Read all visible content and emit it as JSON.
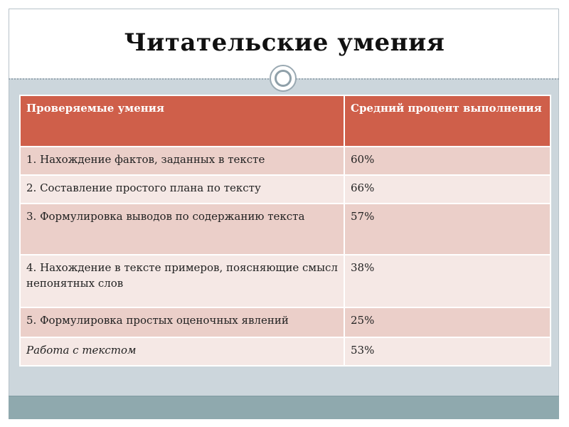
{
  "title": "Читательские умения",
  "table": {
    "headers": [
      "Проверяемые умения",
      "Средний процент выполнения"
    ],
    "rows": [
      {
        "skill": "1. Нахождение фактов, заданных  в тексте",
        "percent": " 60%"
      },
      {
        "skill": "2. Составление простого плана по тексту",
        "percent": "66%"
      },
      {
        "skill": "3. Формулировка  выводов по содержанию текста",
        "percent": "57%"
      },
      {
        "skill": "4. Нахождение в тексте примеров, поясняющие смысл непонятных слов",
        "percent": "38%"
      },
      {
        "skill": "5. Формулировка простых оценочных явлений",
        "percent": "25%"
      },
      {
        "skill": "Работа с текстом",
        "percent": "53%"
      }
    ]
  },
  "colors": {
    "header_bg": "#cf5f4a",
    "row_dark": "#ebcfc9",
    "row_light": "#f5e8e5",
    "frame": "#ccd6dc",
    "bottom_strip": "#8fa9ae"
  }
}
